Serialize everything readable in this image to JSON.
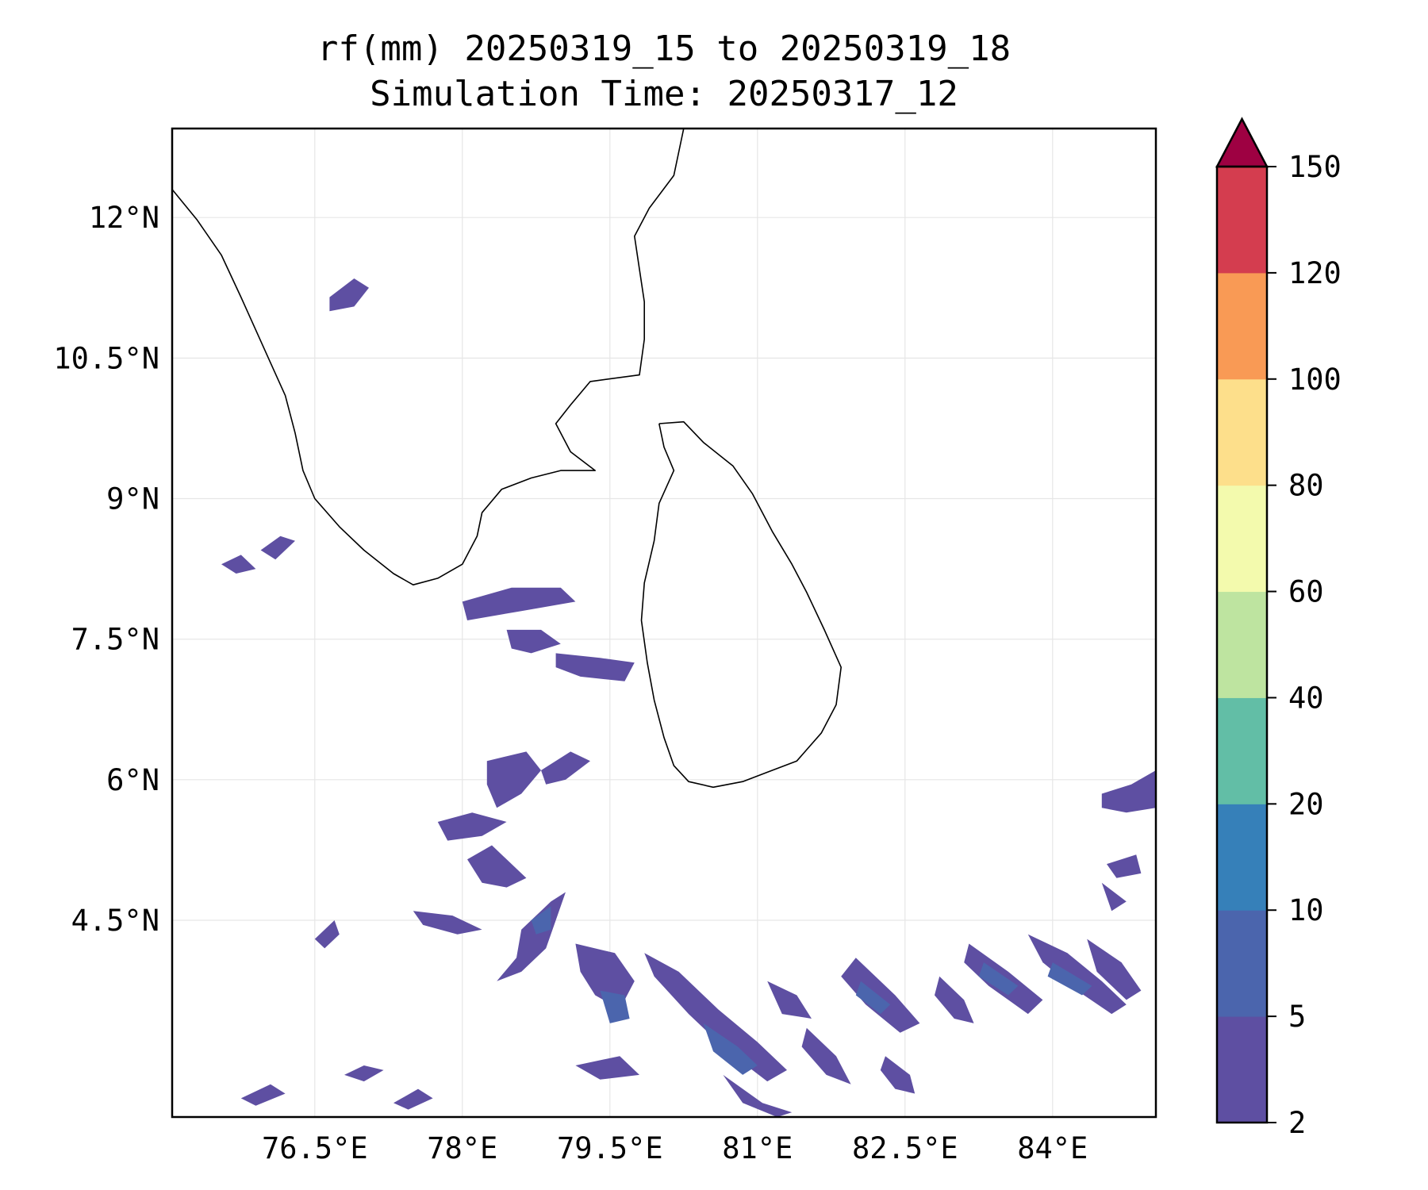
{
  "title": {
    "line1": "rf(mm) 20250319_15 to 20250319_18",
    "line2": "Simulation Time: 20250317_12"
  },
  "map": {
    "extent": {
      "lon": [
        75.05,
        85.05
      ],
      "lat": [
        2.4,
        12.95
      ]
    },
    "lat_ticks": [
      {
        "value": 12,
        "label": "12°N"
      },
      {
        "value": 10.5,
        "label": "10.5°N"
      },
      {
        "value": 9,
        "label": "9°N"
      },
      {
        "value": 7.5,
        "label": "7.5°N"
      },
      {
        "value": 6,
        "label": "6°N"
      },
      {
        "value": 4.5,
        "label": "4.5°N"
      }
    ],
    "lon_ticks": [
      {
        "value": 76.5,
        "label": "76.5°E"
      },
      {
        "value": 78,
        "label": "78°E"
      },
      {
        "value": 79.5,
        "label": "79.5°E"
      },
      {
        "value": 81,
        "label": "81°E"
      },
      {
        "value": 82.5,
        "label": "82.5°E"
      },
      {
        "value": 84,
        "label": "84°E"
      }
    ],
    "gridlines": true,
    "coast_india": [
      [
        75.05,
        12.3
      ],
      [
        75.3,
        11.98
      ],
      [
        75.55,
        11.6
      ],
      [
        75.75,
        11.15
      ],
      [
        75.9,
        10.8
      ],
      [
        76.05,
        10.45
      ],
      [
        76.2,
        10.1
      ],
      [
        76.3,
        9.7
      ],
      [
        76.38,
        9.3
      ],
      [
        76.5,
        9.0
      ],
      [
        76.75,
        8.7
      ],
      [
        77.0,
        8.45
      ],
      [
        77.3,
        8.2
      ],
      [
        77.5,
        8.08
      ],
      [
        77.75,
        8.15
      ],
      [
        78.0,
        8.3
      ],
      [
        78.15,
        8.6
      ],
      [
        78.2,
        8.85
      ],
      [
        78.4,
        9.1
      ],
      [
        78.7,
        9.22
      ],
      [
        79.0,
        9.3
      ],
      [
        79.35,
        9.3
      ],
      [
        79.1,
        9.5
      ],
      [
        78.95,
        9.8
      ],
      [
        79.1,
        10.0
      ],
      [
        79.3,
        10.25
      ],
      [
        79.8,
        10.32
      ],
      [
        79.85,
        10.7
      ],
      [
        79.85,
        11.1
      ],
      [
        79.8,
        11.45
      ],
      [
        79.75,
        11.8
      ],
      [
        79.9,
        12.1
      ],
      [
        80.15,
        12.45
      ],
      [
        80.25,
        12.95
      ]
    ],
    "coast_srilanka": [
      [
        80.0,
        9.8
      ],
      [
        80.25,
        9.82
      ],
      [
        80.45,
        9.6
      ],
      [
        80.75,
        9.35
      ],
      [
        80.95,
        9.05
      ],
      [
        81.15,
        8.65
      ],
      [
        81.35,
        8.3
      ],
      [
        81.5,
        8.0
      ],
      [
        81.68,
        7.6
      ],
      [
        81.85,
        7.2
      ],
      [
        81.8,
        6.8
      ],
      [
        81.65,
        6.5
      ],
      [
        81.4,
        6.2
      ],
      [
        81.1,
        6.08
      ],
      [
        80.85,
        5.98
      ],
      [
        80.55,
        5.92
      ],
      [
        80.3,
        5.98
      ],
      [
        80.15,
        6.15
      ],
      [
        80.05,
        6.45
      ],
      [
        79.95,
        6.85
      ],
      [
        79.88,
        7.25
      ],
      [
        79.82,
        7.7
      ],
      [
        79.85,
        8.1
      ],
      [
        79.95,
        8.55
      ],
      [
        80.0,
        8.95
      ],
      [
        80.15,
        9.3
      ],
      [
        80.05,
        9.55
      ],
      [
        80.0,
        9.8
      ]
    ],
    "rain_cells": [
      {
        "band": "2-5",
        "lonlat": [
          [
            76.65,
            11.15
          ],
          [
            76.9,
            11.35
          ],
          [
            77.05,
            11.25
          ],
          [
            76.9,
            11.05
          ],
          [
            76.65,
            11.0
          ]
        ]
      },
      {
        "band": "2-5",
        "lonlat": [
          [
            75.55,
            8.3
          ],
          [
            75.75,
            8.4
          ],
          [
            75.9,
            8.25
          ],
          [
            75.7,
            8.2
          ]
        ]
      },
      {
        "band": "2-5",
        "lonlat": [
          [
            75.95,
            8.45
          ],
          [
            76.15,
            8.6
          ],
          [
            76.3,
            8.55
          ],
          [
            76.1,
            8.35
          ]
        ]
      },
      {
        "band": "2-5",
        "lonlat": [
          [
            78.0,
            7.9
          ],
          [
            78.5,
            8.05
          ],
          [
            79.0,
            8.05
          ],
          [
            79.15,
            7.9
          ],
          [
            78.6,
            7.8
          ],
          [
            78.05,
            7.7
          ]
        ]
      },
      {
        "band": "2-5",
        "lonlat": [
          [
            78.45,
            7.6
          ],
          [
            78.8,
            7.6
          ],
          [
            79.0,
            7.45
          ],
          [
            78.7,
            7.35
          ],
          [
            78.5,
            7.4
          ]
        ]
      },
      {
        "band": "2-5",
        "lonlat": [
          [
            78.95,
            7.35
          ],
          [
            79.4,
            7.3
          ],
          [
            79.75,
            7.25
          ],
          [
            79.65,
            7.05
          ],
          [
            79.2,
            7.1
          ],
          [
            78.95,
            7.2
          ]
        ]
      },
      {
        "band": "2-5",
        "lonlat": [
          [
            78.25,
            6.2
          ],
          [
            78.65,
            6.3
          ],
          [
            78.8,
            6.1
          ],
          [
            78.6,
            5.85
          ],
          [
            78.35,
            5.7
          ],
          [
            78.25,
            5.95
          ]
        ]
      },
      {
        "band": "2-5",
        "lonlat": [
          [
            78.8,
            6.1
          ],
          [
            79.1,
            6.3
          ],
          [
            79.3,
            6.2
          ],
          [
            79.05,
            6.0
          ],
          [
            78.85,
            5.95
          ]
        ]
      },
      {
        "band": "2-5",
        "lonlat": [
          [
            77.75,
            5.55
          ],
          [
            78.1,
            5.65
          ],
          [
            78.45,
            5.55
          ],
          [
            78.2,
            5.4
          ],
          [
            77.85,
            5.35
          ]
        ]
      },
      {
        "band": "2-5",
        "lonlat": [
          [
            78.05,
            5.15
          ],
          [
            78.3,
            5.3
          ],
          [
            78.65,
            4.95
          ],
          [
            78.45,
            4.85
          ],
          [
            78.2,
            4.9
          ]
        ]
      },
      {
        "band": "2-5",
        "lonlat": [
          [
            77.5,
            4.6
          ],
          [
            77.9,
            4.55
          ],
          [
            78.2,
            4.4
          ],
          [
            77.95,
            4.35
          ],
          [
            77.6,
            4.45
          ]
        ]
      },
      {
        "band": "2-5",
        "lonlat": [
          [
            78.6,
            4.4
          ],
          [
            78.9,
            4.7
          ],
          [
            79.05,
            4.8
          ],
          [
            78.95,
            4.5
          ],
          [
            78.85,
            4.2
          ],
          [
            78.6,
            3.95
          ],
          [
            78.35,
            3.85
          ],
          [
            78.55,
            4.1
          ]
        ]
      },
      {
        "band": "2-5",
        "lonlat": [
          [
            76.5,
            4.3
          ],
          [
            76.7,
            4.5
          ],
          [
            76.75,
            4.35
          ],
          [
            76.6,
            4.2
          ]
        ]
      },
      {
        "band": "2-5",
        "lonlat": [
          [
            76.8,
            2.85
          ],
          [
            77.0,
            2.95
          ],
          [
            77.2,
            2.9
          ],
          [
            77.0,
            2.78
          ]
        ]
      },
      {
        "band": "2-5",
        "lonlat": [
          [
            75.75,
            2.6
          ],
          [
            76.05,
            2.75
          ],
          [
            76.2,
            2.65
          ],
          [
            75.9,
            2.52
          ]
        ]
      },
      {
        "band": "2-5",
        "lonlat": [
          [
            77.3,
            2.55
          ],
          [
            77.55,
            2.7
          ],
          [
            77.7,
            2.6
          ],
          [
            77.45,
            2.48
          ]
        ]
      },
      {
        "band": "2-5",
        "lonlat": [
          [
            79.15,
            2.95
          ],
          [
            79.6,
            3.05
          ],
          [
            79.8,
            2.85
          ],
          [
            79.4,
            2.8
          ]
        ]
      },
      {
        "band": "2-5",
        "lonlat": [
          [
            79.15,
            4.25
          ],
          [
            79.55,
            4.15
          ],
          [
            79.75,
            3.85
          ],
          [
            79.6,
            3.55
          ],
          [
            79.35,
            3.7
          ],
          [
            79.2,
            3.95
          ]
        ]
      },
      {
        "band": "2-5",
        "lonlat": [
          [
            79.85,
            4.15
          ],
          [
            80.2,
            3.95
          ],
          [
            80.6,
            3.55
          ],
          [
            81.0,
            3.2
          ],
          [
            81.3,
            2.9
          ],
          [
            81.1,
            2.78
          ],
          [
            80.7,
            3.1
          ],
          [
            80.3,
            3.5
          ],
          [
            79.95,
            3.9
          ]
        ]
      },
      {
        "band": "2-5",
        "lonlat": [
          [
            80.65,
            2.85
          ],
          [
            81.05,
            2.55
          ],
          [
            81.35,
            2.45
          ],
          [
            81.2,
            2.4
          ],
          [
            80.85,
            2.55
          ]
        ]
      },
      {
        "band": "2-5",
        "lonlat": [
          [
            81.1,
            3.85
          ],
          [
            81.4,
            3.7
          ],
          [
            81.55,
            3.45
          ],
          [
            81.25,
            3.5
          ]
        ]
      },
      {
        "band": "2-5",
        "lonlat": [
          [
            81.5,
            3.35
          ],
          [
            81.8,
            3.05
          ],
          [
            81.95,
            2.75
          ],
          [
            81.7,
            2.85
          ],
          [
            81.45,
            3.15
          ]
        ]
      },
      {
        "band": "2-5",
        "lonlat": [
          [
            82.0,
            4.1
          ],
          [
            82.4,
            3.7
          ],
          [
            82.65,
            3.4
          ],
          [
            82.45,
            3.3
          ],
          [
            82.1,
            3.6
          ],
          [
            81.85,
            3.9
          ]
        ]
      },
      {
        "band": "2-5",
        "lonlat": [
          [
            82.3,
            3.05
          ],
          [
            82.55,
            2.85
          ],
          [
            82.6,
            2.65
          ],
          [
            82.4,
            2.7
          ],
          [
            82.25,
            2.9
          ]
        ]
      },
      {
        "band": "2-5",
        "lonlat": [
          [
            82.85,
            3.9
          ],
          [
            83.1,
            3.65
          ],
          [
            83.2,
            3.4
          ],
          [
            83.0,
            3.45
          ],
          [
            82.8,
            3.7
          ]
        ]
      },
      {
        "band": "2-5",
        "lonlat": [
          [
            83.15,
            4.25
          ],
          [
            83.55,
            3.95
          ],
          [
            83.9,
            3.65
          ],
          [
            83.75,
            3.5
          ],
          [
            83.35,
            3.8
          ],
          [
            83.1,
            4.05
          ]
        ]
      },
      {
        "band": "2-5",
        "lonlat": [
          [
            83.75,
            4.35
          ],
          [
            84.15,
            4.15
          ],
          [
            84.5,
            3.85
          ],
          [
            84.75,
            3.6
          ],
          [
            84.6,
            3.5
          ],
          [
            84.25,
            3.75
          ],
          [
            83.9,
            4.05
          ]
        ]
      },
      {
        "band": "2-5",
        "lonlat": [
          [
            84.35,
            4.3
          ],
          [
            84.7,
            4.05
          ],
          [
            84.9,
            3.75
          ],
          [
            84.75,
            3.65
          ],
          [
            84.45,
            3.95
          ]
        ]
      },
      {
        "band": "2-5",
        "lonlat": [
          [
            84.5,
            5.85
          ],
          [
            84.8,
            5.95
          ],
          [
            85.05,
            6.1
          ],
          [
            85.05,
            5.7
          ],
          [
            84.75,
            5.65
          ],
          [
            84.5,
            5.7
          ]
        ]
      },
      {
        "band": "2-5",
        "lonlat": [
          [
            84.55,
            5.1
          ],
          [
            84.85,
            5.2
          ],
          [
            84.9,
            5.0
          ],
          [
            84.65,
            4.95
          ]
        ]
      },
      {
        "band": "2-5",
        "lonlat": [
          [
            84.5,
            4.9
          ],
          [
            84.75,
            4.7
          ],
          [
            84.6,
            4.6
          ]
        ]
      },
      {
        "band": "5-10",
        "lonlat": [
          [
            79.4,
            3.75
          ],
          [
            79.65,
            3.7
          ],
          [
            79.7,
            3.45
          ],
          [
            79.5,
            3.4
          ]
        ]
      },
      {
        "band": "5-10",
        "lonlat": [
          [
            80.45,
            3.4
          ],
          [
            80.8,
            3.15
          ],
          [
            81.0,
            2.95
          ],
          [
            80.85,
            2.85
          ],
          [
            80.55,
            3.1
          ]
        ]
      },
      {
        "band": "5-10",
        "lonlat": [
          [
            82.05,
            3.85
          ],
          [
            82.35,
            3.6
          ],
          [
            82.25,
            3.5
          ],
          [
            82.0,
            3.7
          ]
        ]
      },
      {
        "band": "5-10",
        "lonlat": [
          [
            83.3,
            4.05
          ],
          [
            83.65,
            3.8
          ],
          [
            83.55,
            3.7
          ],
          [
            83.25,
            3.9
          ]
        ]
      },
      {
        "band": "5-10",
        "lonlat": [
          [
            84.0,
            4.05
          ],
          [
            84.4,
            3.8
          ],
          [
            84.3,
            3.7
          ],
          [
            83.95,
            3.9
          ]
        ]
      },
      {
        "band": "5-10",
        "lonlat": [
          [
            78.7,
            4.5
          ],
          [
            78.9,
            4.65
          ],
          [
            78.9,
            4.4
          ],
          [
            78.75,
            4.35
          ]
        ]
      }
    ]
  },
  "colorbar": {
    "bounds": [
      2,
      5,
      10,
      20,
      40,
      60,
      80,
      100,
      120,
      150
    ],
    "tick_labels": [
      "2",
      "5",
      "10",
      "20",
      "40",
      "60",
      "80",
      "100",
      "120",
      "150"
    ],
    "colors": [
      "#5e4fa2",
      "#4b65ad",
      "#3680b9",
      "#62bea6",
      "#bee4a0",
      "#f3faad",
      "#fddf8b",
      "#f99a55",
      "#d43d4f"
    ],
    "extend_color": "#9e0142",
    "extend": "max"
  }
}
